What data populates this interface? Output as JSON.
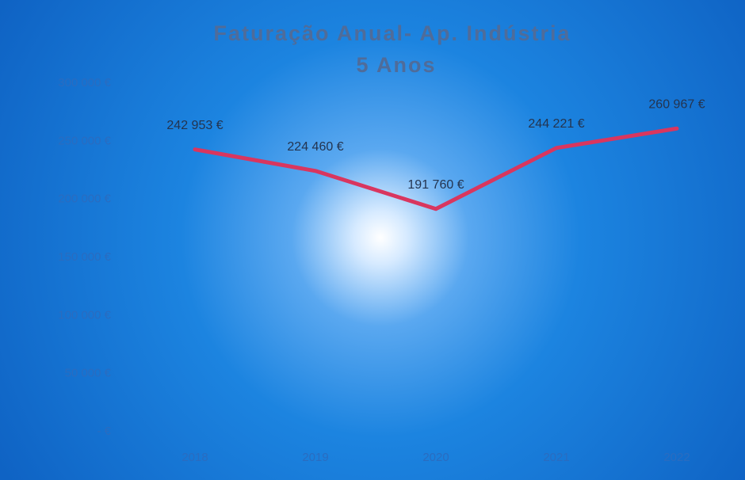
{
  "chart_data": {
    "type": "line",
    "title": "Faturação Anual- Ap. Indústria",
    "subtitle": "5 Anos",
    "categories": [
      "2018",
      "2019",
      "2020",
      "2021",
      "2022"
    ],
    "values": [
      242953,
      224460,
      191760,
      244221,
      260967
    ],
    "value_labels": [
      "242 953 €",
      "224 460 €",
      "191 760 €",
      "244 221 €",
      "260 967 €"
    ],
    "color": "#d9365f",
    "ylim": [
      0,
      300000
    ],
    "yticks": [
      {
        "value": 0,
        "label": "- €"
      },
      {
        "value": 50000,
        "label": "50 000 €"
      },
      {
        "value": 100000,
        "label": "100 000 €"
      },
      {
        "value": 150000,
        "label": "150 000 €"
      },
      {
        "value": 200000,
        "label": "200 000 €"
      },
      {
        "value": 250000,
        "label": "250 000 €"
      },
      {
        "value": 300000,
        "label": "300 000 €"
      }
    ],
    "grid": false
  }
}
